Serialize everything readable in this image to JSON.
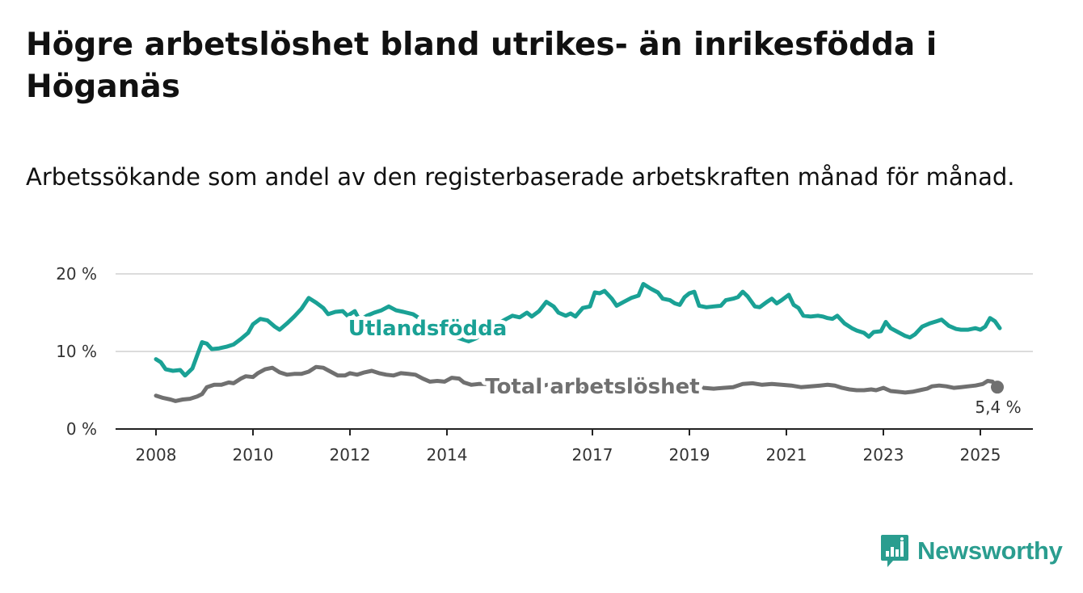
{
  "title": "Högre arbetslöshet bland utrikes- än inrikesfödda i Höganäs",
  "subtitle": "Arbetssökande som andel av den registerbaserade arbetskraften månad för månad.",
  "brand": {
    "name": "Newsworthy",
    "icon": "newsworthy-logo-icon",
    "color": "#2a9d8f"
  },
  "chart_data": {
    "type": "line",
    "ylim": [
      0,
      20
    ],
    "xlim": [
      2007.9,
      2025.9
    ],
    "yticks": [
      {
        "value": 0,
        "label": "0 %"
      },
      {
        "value": 10,
        "label": "10 %"
      },
      {
        "value": 20,
        "label": "20 %"
      }
    ],
    "xticks": [
      {
        "value": 2008,
        "label": "2008"
      },
      {
        "value": 2010,
        "label": "2010"
      },
      {
        "value": 2012,
        "label": "2012"
      },
      {
        "value": 2014,
        "label": "2014"
      },
      {
        "value": 2017,
        "label": "2017"
      },
      {
        "value": 2019,
        "label": "2019"
      },
      {
        "value": 2021,
        "label": "2021"
      },
      {
        "value": 2023,
        "label": "2023"
      },
      {
        "value": 2025,
        "label": "2025"
      }
    ],
    "grid": true,
    "series": [
      {
        "name": "Utlandsfödda",
        "color": "#1aa195",
        "label_at": [
          2013.6,
          13.0
        ],
        "points": [
          [
            2008.0,
            9.0
          ],
          [
            2008.1,
            8.6
          ],
          [
            2008.2,
            7.7
          ],
          [
            2008.35,
            7.5
          ],
          [
            2008.5,
            7.6
          ],
          [
            2008.6,
            6.9
          ],
          [
            2008.75,
            7.8
          ],
          [
            2008.85,
            9.5
          ],
          [
            2008.95,
            11.2
          ],
          [
            2009.05,
            11.0
          ],
          [
            2009.15,
            10.3
          ],
          [
            2009.3,
            10.4
          ],
          [
            2009.45,
            10.6
          ],
          [
            2009.6,
            10.9
          ],
          [
            2009.75,
            11.6
          ],
          [
            2009.9,
            12.4
          ],
          [
            2010.0,
            13.5
          ],
          [
            2010.15,
            14.2
          ],
          [
            2010.3,
            14.0
          ],
          [
            2010.45,
            13.2
          ],
          [
            2010.55,
            12.8
          ],
          [
            2010.7,
            13.6
          ],
          [
            2010.85,
            14.5
          ],
          [
            2011.0,
            15.5
          ],
          [
            2011.15,
            16.9
          ],
          [
            2011.3,
            16.3
          ],
          [
            2011.45,
            15.6
          ],
          [
            2011.55,
            14.8
          ],
          [
            2011.7,
            15.1
          ],
          [
            2011.85,
            15.2
          ],
          [
            2011.95,
            14.6
          ],
          [
            2012.1,
            15.2
          ],
          [
            2012.2,
            14.0
          ],
          [
            2012.35,
            14.6
          ],
          [
            2012.5,
            15.0
          ],
          [
            2012.65,
            15.3
          ],
          [
            2012.8,
            15.8
          ],
          [
            2012.95,
            15.3
          ],
          [
            2013.1,
            15.1
          ],
          [
            2013.3,
            14.8
          ],
          [
            2013.5,
            14.0
          ],
          [
            2013.7,
            13.2
          ],
          [
            2013.9,
            12.5
          ],
          [
            2014.1,
            12.0
          ],
          [
            2014.3,
            11.6
          ],
          [
            2014.45,
            11.3
          ],
          [
            2014.6,
            11.7
          ],
          [
            2014.8,
            12.6
          ],
          [
            2015.0,
            13.4
          ],
          [
            2015.2,
            14.1
          ],
          [
            2015.35,
            14.6
          ],
          [
            2015.5,
            14.4
          ],
          [
            2015.65,
            15.0
          ],
          [
            2015.75,
            14.5
          ],
          [
            2015.9,
            15.2
          ],
          [
            2016.05,
            16.4
          ],
          [
            2016.2,
            15.8
          ],
          [
            2016.3,
            15.0
          ],
          [
            2016.45,
            14.6
          ],
          [
            2016.55,
            14.9
          ],
          [
            2016.65,
            14.5
          ],
          [
            2016.8,
            15.6
          ],
          [
            2016.95,
            15.8
          ],
          [
            2017.05,
            17.6
          ],
          [
            2017.15,
            17.5
          ],
          [
            2017.25,
            17.8
          ],
          [
            2017.4,
            16.8
          ],
          [
            2017.5,
            15.9
          ],
          [
            2017.65,
            16.4
          ],
          [
            2017.8,
            16.9
          ],
          [
            2017.95,
            17.2
          ],
          [
            2018.05,
            18.7
          ],
          [
            2018.2,
            18.1
          ],
          [
            2018.35,
            17.6
          ],
          [
            2018.45,
            16.8
          ],
          [
            2018.6,
            16.6
          ],
          [
            2018.7,
            16.2
          ],
          [
            2018.8,
            16.0
          ],
          [
            2018.9,
            17.0
          ],
          [
            2019.0,
            17.5
          ],
          [
            2019.1,
            17.7
          ],
          [
            2019.2,
            15.9
          ],
          [
            2019.35,
            15.7
          ],
          [
            2019.5,
            15.8
          ],
          [
            2019.65,
            15.9
          ],
          [
            2019.75,
            16.6
          ],
          [
            2019.9,
            16.8
          ],
          [
            2020.0,
            17.0
          ],
          [
            2020.1,
            17.7
          ],
          [
            2020.2,
            17.1
          ],
          [
            2020.35,
            15.8
          ],
          [
            2020.45,
            15.7
          ],
          [
            2020.6,
            16.4
          ],
          [
            2020.7,
            16.8
          ],
          [
            2020.8,
            16.2
          ],
          [
            2020.9,
            16.6
          ],
          [
            2021.05,
            17.3
          ],
          [
            2021.15,
            16.0
          ],
          [
            2021.25,
            15.6
          ],
          [
            2021.35,
            14.6
          ],
          [
            2021.5,
            14.5
          ],
          [
            2021.65,
            14.6
          ],
          [
            2021.75,
            14.5
          ],
          [
            2021.85,
            14.3
          ],
          [
            2021.95,
            14.2
          ],
          [
            2022.05,
            14.6
          ],
          [
            2022.2,
            13.6
          ],
          [
            2022.35,
            13.0
          ],
          [
            2022.45,
            12.7
          ],
          [
            2022.6,
            12.4
          ],
          [
            2022.7,
            11.9
          ],
          [
            2022.8,
            12.5
          ],
          [
            2022.95,
            12.6
          ],
          [
            2023.05,
            13.8
          ],
          [
            2023.15,
            13.0
          ],
          [
            2023.3,
            12.5
          ],
          [
            2023.45,
            12.0
          ],
          [
            2023.55,
            11.8
          ],
          [
            2023.65,
            12.2
          ],
          [
            2023.8,
            13.2
          ],
          [
            2023.95,
            13.6
          ],
          [
            2024.1,
            13.9
          ],
          [
            2024.2,
            14.1
          ],
          [
            2024.35,
            13.3
          ],
          [
            2024.5,
            12.9
          ],
          [
            2024.6,
            12.8
          ],
          [
            2024.75,
            12.8
          ],
          [
            2024.9,
            13.0
          ],
          [
            2025.0,
            12.8
          ],
          [
            2025.1,
            13.2
          ],
          [
            2025.2,
            14.3
          ],
          [
            2025.3,
            13.9
          ],
          [
            2025.4,
            13.0
          ]
        ]
      },
      {
        "name": "Total arbetslöshet",
        "color": "#707070",
        "label_at": [
          2017.0,
          5.5
        ],
        "last_value_label": "5,4 %",
        "points": [
          [
            2008.0,
            4.3
          ],
          [
            2008.15,
            4.0
          ],
          [
            2008.3,
            3.8
          ],
          [
            2008.4,
            3.6
          ],
          [
            2008.55,
            3.8
          ],
          [
            2008.7,
            3.9
          ],
          [
            2008.85,
            4.2
          ],
          [
            2008.95,
            4.5
          ],
          [
            2009.05,
            5.4
          ],
          [
            2009.2,
            5.7
          ],
          [
            2009.35,
            5.7
          ],
          [
            2009.5,
            6.0
          ],
          [
            2009.6,
            5.9
          ],
          [
            2009.75,
            6.5
          ],
          [
            2009.85,
            6.8
          ],
          [
            2010.0,
            6.7
          ],
          [
            2010.1,
            7.2
          ],
          [
            2010.25,
            7.7
          ],
          [
            2010.4,
            7.9
          ],
          [
            2010.55,
            7.3
          ],
          [
            2010.7,
            7.0
          ],
          [
            2010.85,
            7.1
          ],
          [
            2011.0,
            7.1
          ],
          [
            2011.15,
            7.4
          ],
          [
            2011.3,
            8.0
          ],
          [
            2011.45,
            7.9
          ],
          [
            2011.6,
            7.4
          ],
          [
            2011.75,
            6.9
          ],
          [
            2011.9,
            6.9
          ],
          [
            2012.0,
            7.2
          ],
          [
            2012.15,
            7.0
          ],
          [
            2012.3,
            7.3
          ],
          [
            2012.45,
            7.5
          ],
          [
            2012.6,
            7.2
          ],
          [
            2012.75,
            7.0
          ],
          [
            2012.9,
            6.9
          ],
          [
            2013.05,
            7.2
          ],
          [
            2013.2,
            7.1
          ],
          [
            2013.35,
            7.0
          ],
          [
            2013.5,
            6.5
          ],
          [
            2013.65,
            6.1
          ],
          [
            2013.8,
            6.2
          ],
          [
            2013.95,
            6.1
          ],
          [
            2014.1,
            6.6
          ],
          [
            2014.25,
            6.5
          ],
          [
            2014.35,
            6.0
          ],
          [
            2014.5,
            5.7
          ],
          [
            2014.65,
            5.8
          ],
          [
            2014.8,
            5.8
          ],
          [
            2014.95,
            6.0
          ],
          [
            2015.1,
            6.1
          ],
          [
            2015.25,
            5.8
          ],
          [
            2015.4,
            5.5
          ],
          [
            2015.55,
            5.4
          ],
          [
            2015.7,
            5.6
          ],
          [
            2015.85,
            5.5
          ],
          [
            2016.0,
            5.6
          ],
          [
            2016.15,
            5.8
          ],
          [
            2016.3,
            5.6
          ],
          [
            2016.45,
            5.3
          ],
          [
            2016.6,
            5.3
          ],
          [
            2016.75,
            5.5
          ],
          [
            2016.9,
            5.4
          ],
          [
            2017.0,
            5.6
          ],
          [
            2017.15,
            5.8
          ],
          [
            2017.3,
            5.7
          ],
          [
            2017.5,
            5.5
          ],
          [
            2017.7,
            5.4
          ],
          [
            2017.9,
            5.6
          ],
          [
            2018.1,
            5.7
          ],
          [
            2018.3,
            5.5
          ],
          [
            2018.5,
            5.3
          ],
          [
            2018.7,
            5.3
          ],
          [
            2018.9,
            5.4
          ],
          [
            2019.1,
            5.5
          ],
          [
            2019.3,
            5.3
          ],
          [
            2019.5,
            5.2
          ],
          [
            2019.7,
            5.3
          ],
          [
            2019.9,
            5.4
          ],
          [
            2020.1,
            5.8
          ],
          [
            2020.3,
            5.9
          ],
          [
            2020.5,
            5.7
          ],
          [
            2020.7,
            5.8
          ],
          [
            2020.9,
            5.7
          ],
          [
            2021.1,
            5.6
          ],
          [
            2021.3,
            5.4
          ],
          [
            2021.5,
            5.5
          ],
          [
            2021.7,
            5.6
          ],
          [
            2021.85,
            5.7
          ],
          [
            2022.0,
            5.6
          ],
          [
            2022.15,
            5.3
          ],
          [
            2022.3,
            5.1
          ],
          [
            2022.45,
            5.0
          ],
          [
            2022.6,
            5.0
          ],
          [
            2022.75,
            5.1
          ],
          [
            2022.85,
            5.0
          ],
          [
            2023.0,
            5.3
          ],
          [
            2023.15,
            4.9
          ],
          [
            2023.3,
            4.8
          ],
          [
            2023.45,
            4.7
          ],
          [
            2023.6,
            4.8
          ],
          [
            2023.75,
            5.0
          ],
          [
            2023.9,
            5.2
          ],
          [
            2024.0,
            5.5
          ],
          [
            2024.15,
            5.6
          ],
          [
            2024.3,
            5.5
          ],
          [
            2024.45,
            5.3
          ],
          [
            2024.6,
            5.4
          ],
          [
            2024.75,
            5.5
          ],
          [
            2024.9,
            5.6
          ],
          [
            2025.05,
            5.8
          ],
          [
            2025.15,
            6.2
          ],
          [
            2025.25,
            6.1
          ],
          [
            2025.35,
            5.4
          ]
        ]
      }
    ]
  }
}
